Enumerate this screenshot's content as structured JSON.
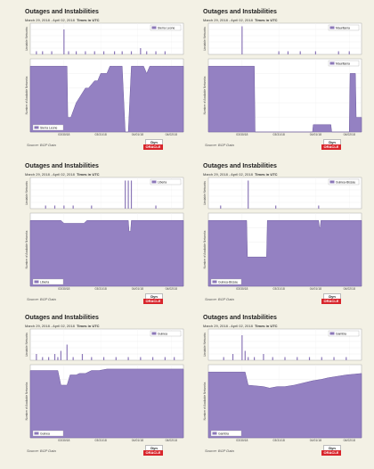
{
  "panels": [
    {
      "title": "Outages and Instabilities",
      "subtitle_dates": "March 29, 2018 - April 02, 2018",
      "subtitle_tz": "Times in UTC",
      "source": "Source: BGP Data",
      "dyn_label": "Dyn",
      "oracle_label": "ORACLE",
      "chart_data": {
        "type": "area",
        "x_ticks": [
          "03/30/18",
          "03/31/18",
          "04/01/18",
          "04/02/18"
        ],
        "unstable": {
          "ylabel": "Unstable Networks",
          "legend": "Sierra Leone",
          "ylim": [
            0,
            10
          ],
          "x": [
            0.04,
            0.08,
            0.14,
            0.22,
            0.25,
            0.3,
            0.36,
            0.42,
            0.48,
            0.55,
            0.6,
            0.66,
            0.72,
            0.76,
            0.82,
            0.88
          ],
          "y": [
            1,
            1,
            1,
            8,
            1,
            1,
            1,
            1,
            1,
            1,
            1,
            1,
            2,
            1,
            1,
            1
          ]
        },
        "available": {
          "ylabel": "Number of Available Networks",
          "legend": "Sierra Leone",
          "ylim": [
            0,
            10
          ],
          "x": [
            0,
            0.24,
            0.245,
            0.265,
            0.3,
            0.36,
            0.38,
            0.42,
            0.44,
            0.46,
            0.5,
            0.52,
            0.54,
            0.56,
            0.6,
            0.62,
            0.64,
            0.66,
            0.68,
            0.7,
            0.72,
            0.74,
            0.76,
            0.78,
            0.8,
            0.82,
            0.86,
            0.9,
            0.95,
            1.0
          ],
          "y": [
            9,
            9,
            2,
            2,
            4,
            6,
            6,
            7,
            7,
            8,
            8,
            9,
            9,
            9,
            9,
            0,
            0,
            9,
            9,
            9,
            9,
            9,
            8,
            9,
            9,
            9,
            9,
            9,
            9,
            9
          ]
        }
      }
    },
    {
      "title": "Outages and Instabilities",
      "subtitle_dates": "March 29, 2018 - April 02, 2018",
      "subtitle_tz": "Times in UTC",
      "source": "Source: BGP Data",
      "dyn_label": "Dyn",
      "oracle_label": "ORACLE",
      "chart_data": {
        "type": "area",
        "x_ticks": [
          "03/30/18",
          "03/31/18",
          "04/01/18",
          "04/02/18"
        ],
        "unstable": {
          "ylabel": "Unstable Networks",
          "legend": "Mauritania",
          "ylim": [
            0,
            10
          ],
          "x": [
            0.22,
            0.46,
            0.52,
            0.6,
            0.7,
            0.85,
            0.92
          ],
          "y": [
            9,
            1,
            1,
            1,
            1,
            1,
            1
          ]
        },
        "available": {
          "ylabel": "Number of Available Networks",
          "legend": "Mauritania",
          "ylim": [
            0,
            10
          ],
          "x": [
            0,
            0.3,
            0.305,
            0.68,
            0.685,
            0.8,
            0.805,
            0.92,
            0.925,
            0.96,
            0.965,
            1.0
          ],
          "y": [
            9,
            9,
            0,
            0,
            1,
            1,
            0,
            0,
            8,
            8,
            2,
            2
          ]
        }
      }
    },
    {
      "title": "Outages and Instabilities",
      "subtitle_dates": "March 29, 2018 - April 02, 2018",
      "subtitle_tz": "Times in UTC",
      "source": "Source: BGP Data",
      "dyn_label": "Dyn",
      "oracle_label": "ORACLE",
      "chart_data": {
        "type": "area",
        "x_ticks": [
          "03/30/18",
          "03/31/18",
          "04/01/18",
          "04/02/18"
        ],
        "unstable": {
          "ylabel": "Unstable Networks",
          "legend": "Liberia",
          "ylim": [
            0,
            10
          ],
          "x": [
            0.1,
            0.16,
            0.22,
            0.28,
            0.4,
            0.62,
            0.64,
            0.66,
            0.82
          ],
          "y": [
            1,
            1,
            1,
            1,
            1,
            9,
            9,
            9,
            1
          ]
        },
        "available": {
          "ylabel": "Number of Available Networks",
          "legend": "Liberia",
          "ylim": [
            0,
            10
          ],
          "x": [
            0,
            0.2,
            0.22,
            0.35,
            0.37,
            0.64,
            0.645,
            0.655,
            0.66,
            1.0
          ],
          "y": [
            9,
            9,
            8.6,
            8.6,
            9,
            9,
            7.5,
            7.5,
            9,
            9
          ]
        }
      }
    },
    {
      "title": "Outages and Instabilities",
      "subtitle_dates": "March 29, 2018 - April 02, 2018",
      "subtitle_tz": "Times in UTC",
      "source": "Source: BGP Data",
      "dyn_label": "Dyn",
      "oracle_label": "ORACLE",
      "chart_data": {
        "type": "area",
        "x_ticks": [
          "03/30/18",
          "03/31/18",
          "04/01/18",
          "04/02/18"
        ],
        "unstable": {
          "ylabel": "Unstable Networks",
          "legend": "Guinea-Bissau",
          "ylim": [
            0,
            10
          ],
          "x": [
            0.08,
            0.26,
            0.44,
            0.72
          ],
          "y": [
            1,
            9,
            1,
            1
          ]
        },
        "available": {
          "ylabel": "Number of Available Networks",
          "legend": "Guinea-Bissau",
          "ylim": [
            0,
            10
          ],
          "x": [
            0,
            0.25,
            0.255,
            0.38,
            0.385,
            0.72,
            0.725,
            0.73,
            0.735,
            1.0
          ],
          "y": [
            9,
            9,
            4,
            4,
            9,
            9,
            8,
            8,
            9,
            9
          ]
        }
      }
    },
    {
      "title": "Outages and Instabilities",
      "subtitle_dates": "March 29, 2018 - April 02, 2018",
      "subtitle_tz": "Times in UTC",
      "source": "Source: BGP Data",
      "dyn_label": "Dyn",
      "oracle_label": "ORACLE",
      "chart_data": {
        "type": "area",
        "x_ticks": [
          "03/30/18",
          "03/31/18",
          "04/01/18",
          "04/02/18"
        ],
        "unstable": {
          "ylabel": "Unstable Networks",
          "legend": "Guinea",
          "ylim": [
            0,
            10
          ],
          "x": [
            0.04,
            0.08,
            0.12,
            0.16,
            0.18,
            0.2,
            0.24,
            0.28,
            0.34,
            0.4,
            0.48,
            0.56,
            0.64,
            0.72,
            0.8,
            0.88,
            0.94
          ],
          "y": [
            2,
            1,
            1,
            2,
            1,
            3,
            5,
            1,
            2,
            1,
            1,
            1,
            1,
            1,
            1,
            1,
            1
          ]
        },
        "available": {
          "ylabel": "Number of Available Networks",
          "legend": "Guinea",
          "ylim": [
            0,
            10
          ],
          "x": [
            0,
            0.18,
            0.2,
            0.24,
            0.26,
            0.3,
            0.32,
            0.36,
            0.4,
            0.45,
            0.5,
            1.0
          ],
          "y": [
            9.2,
            9.2,
            7.2,
            7.2,
            8.6,
            8.6,
            8.8,
            8.8,
            9.2,
            9.2,
            9.4,
            9.4
          ]
        }
      }
    },
    {
      "title": "Outages and Instabilities",
      "subtitle_dates": "March 29, 2018 - April 02, 2018",
      "subtitle_tz": "Times in UTC",
      "source": "Source: BGP Data",
      "dyn_label": "Dyn",
      "oracle_label": "ORACLE",
      "chart_data": {
        "type": "area",
        "x_ticks": [
          "03/30/18",
          "03/31/18",
          "04/01/18",
          "04/02/18"
        ],
        "unstable": {
          "ylabel": "Unstable Networks",
          "legend": "Gambia",
          "ylim": [
            0,
            10
          ],
          "x": [
            0.1,
            0.16,
            0.22,
            0.24,
            0.26,
            0.3,
            0.36,
            0.42,
            0.5,
            0.58,
            0.66,
            0.74,
            0.82,
            0.9
          ],
          "y": [
            1,
            2,
            8,
            3,
            1,
            1,
            2,
            1,
            1,
            1,
            1,
            1,
            1,
            1
          ]
        },
        "available": {
          "ylabel": "Number of Available Networks",
          "legend": "Gambia",
          "ylim": [
            0,
            10
          ],
          "x": [
            0,
            0.24,
            0.26,
            0.36,
            0.4,
            0.45,
            0.5,
            0.56,
            0.6,
            0.64,
            0.68,
            0.74,
            0.78,
            0.84,
            0.9,
            1.0
          ],
          "y": [
            9,
            9,
            7.2,
            7.0,
            6.8,
            7.0,
            7.0,
            7.2,
            7.4,
            7.6,
            7.8,
            8.0,
            8.2,
            8.4,
            8.6,
            8.8
          ]
        }
      }
    }
  ]
}
